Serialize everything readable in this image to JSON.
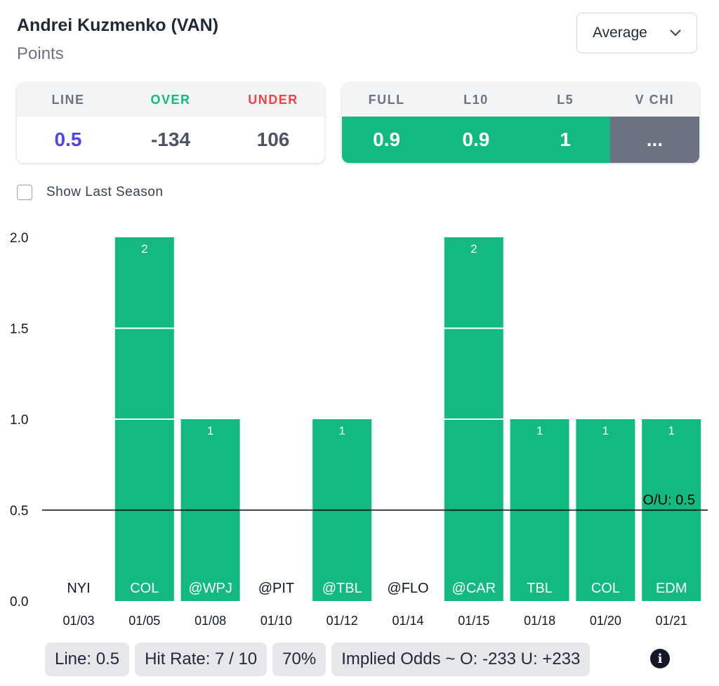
{
  "header": {
    "player": "Andrei Kuzmenko (VAN)",
    "stat": "Points",
    "dropdown_value": "Average"
  },
  "lines_card": {
    "headers": [
      "LINE",
      "OVER",
      "UNDER"
    ],
    "values": [
      "0.5",
      "-134",
      "106"
    ]
  },
  "averages_card": {
    "headers": [
      "FULL",
      "L10",
      "L5",
      "V CHI"
    ],
    "values": [
      "0.9",
      "0.9",
      "1",
      "..."
    ]
  },
  "checkbox": {
    "label": "Show Last Season",
    "checked": false
  },
  "colors": {
    "bar": "#12b981",
    "over": "#10b981",
    "under": "#ef4444",
    "line_value": "#4f46e5",
    "neutral": "#6b7280"
  },
  "chart_data": {
    "type": "bar",
    "categories": [
      "01/03",
      "01/05",
      "01/08",
      "01/10",
      "01/12",
      "01/14",
      "01/15",
      "01/18",
      "01/20",
      "01/21"
    ],
    "opponents": [
      "NYI",
      "COL",
      "@WPJ",
      "@PIT",
      "@TBL",
      "@FLO",
      "@CAR",
      "TBL",
      "COL",
      "EDM"
    ],
    "values": [
      0,
      2,
      1,
      0,
      1,
      0,
      2,
      1,
      1,
      1
    ],
    "yticks": [
      "0.0",
      "0.5",
      "1.0",
      "1.5",
      "2.0"
    ],
    "ylim": [
      0,
      2
    ],
    "line_value": 0.5,
    "line_label": "O/U: 0.5"
  },
  "summary": {
    "line": "Line: 0.5",
    "hit_rate": "Hit Rate: 7 / 10",
    "percent": "70%",
    "implied_odds": "Implied Odds ~ O: -233 U: +233"
  }
}
